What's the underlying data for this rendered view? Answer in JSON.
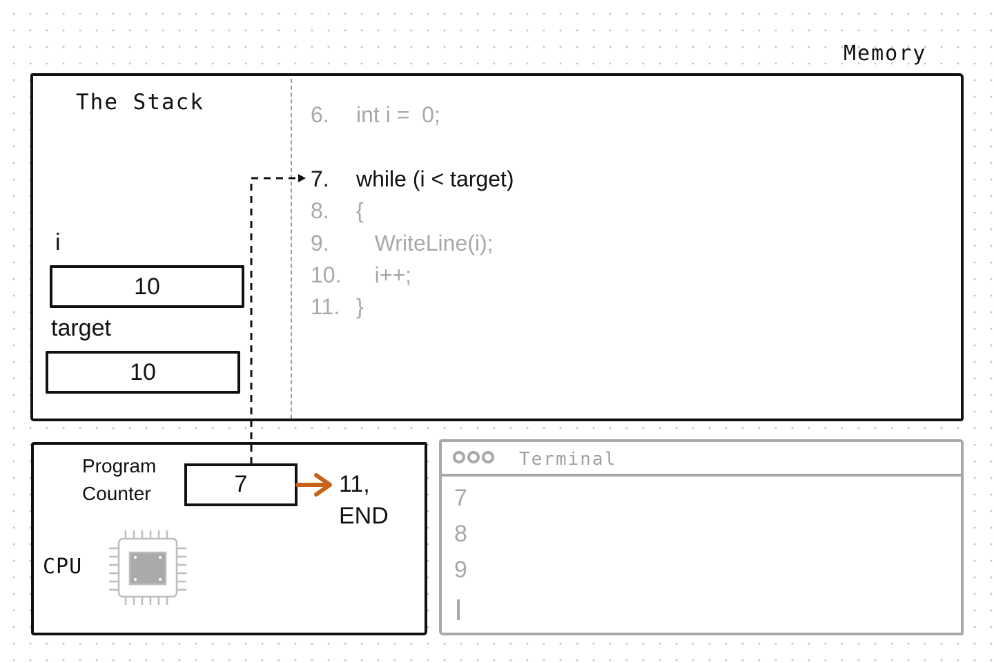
{
  "memory": {
    "title": "Memory"
  },
  "stack": {
    "title": "The Stack",
    "variables": [
      {
        "name": "i",
        "value": "10"
      },
      {
        "name": "target",
        "value": "10"
      }
    ]
  },
  "code": {
    "lines": [
      {
        "num": "6.",
        "text": "int i =  0;",
        "active": false
      },
      {
        "num": "7.",
        "text": "while (i < target)",
        "active": true
      },
      {
        "num": "8.",
        "text": "{",
        "active": false
      },
      {
        "num": "9.",
        "text": "   WriteLine(i);",
        "active": false
      },
      {
        "num": "10.",
        "text": "   i++;",
        "active": false
      },
      {
        "num": "11.",
        "text": "}",
        "active": false
      }
    ]
  },
  "cpu": {
    "label": "CPU",
    "pc_label_line1": "Program",
    "pc_label_line2": "Counter",
    "pc_value": "7",
    "next_line1": "11,",
    "next_line2": "END",
    "arrow_color": "#c8621b",
    "chip_icon": "cpu-chip-icon"
  },
  "terminal": {
    "title": "Terminal",
    "lines": [
      "7",
      "8",
      "9"
    ],
    "border_color": "#a8a8a8"
  }
}
